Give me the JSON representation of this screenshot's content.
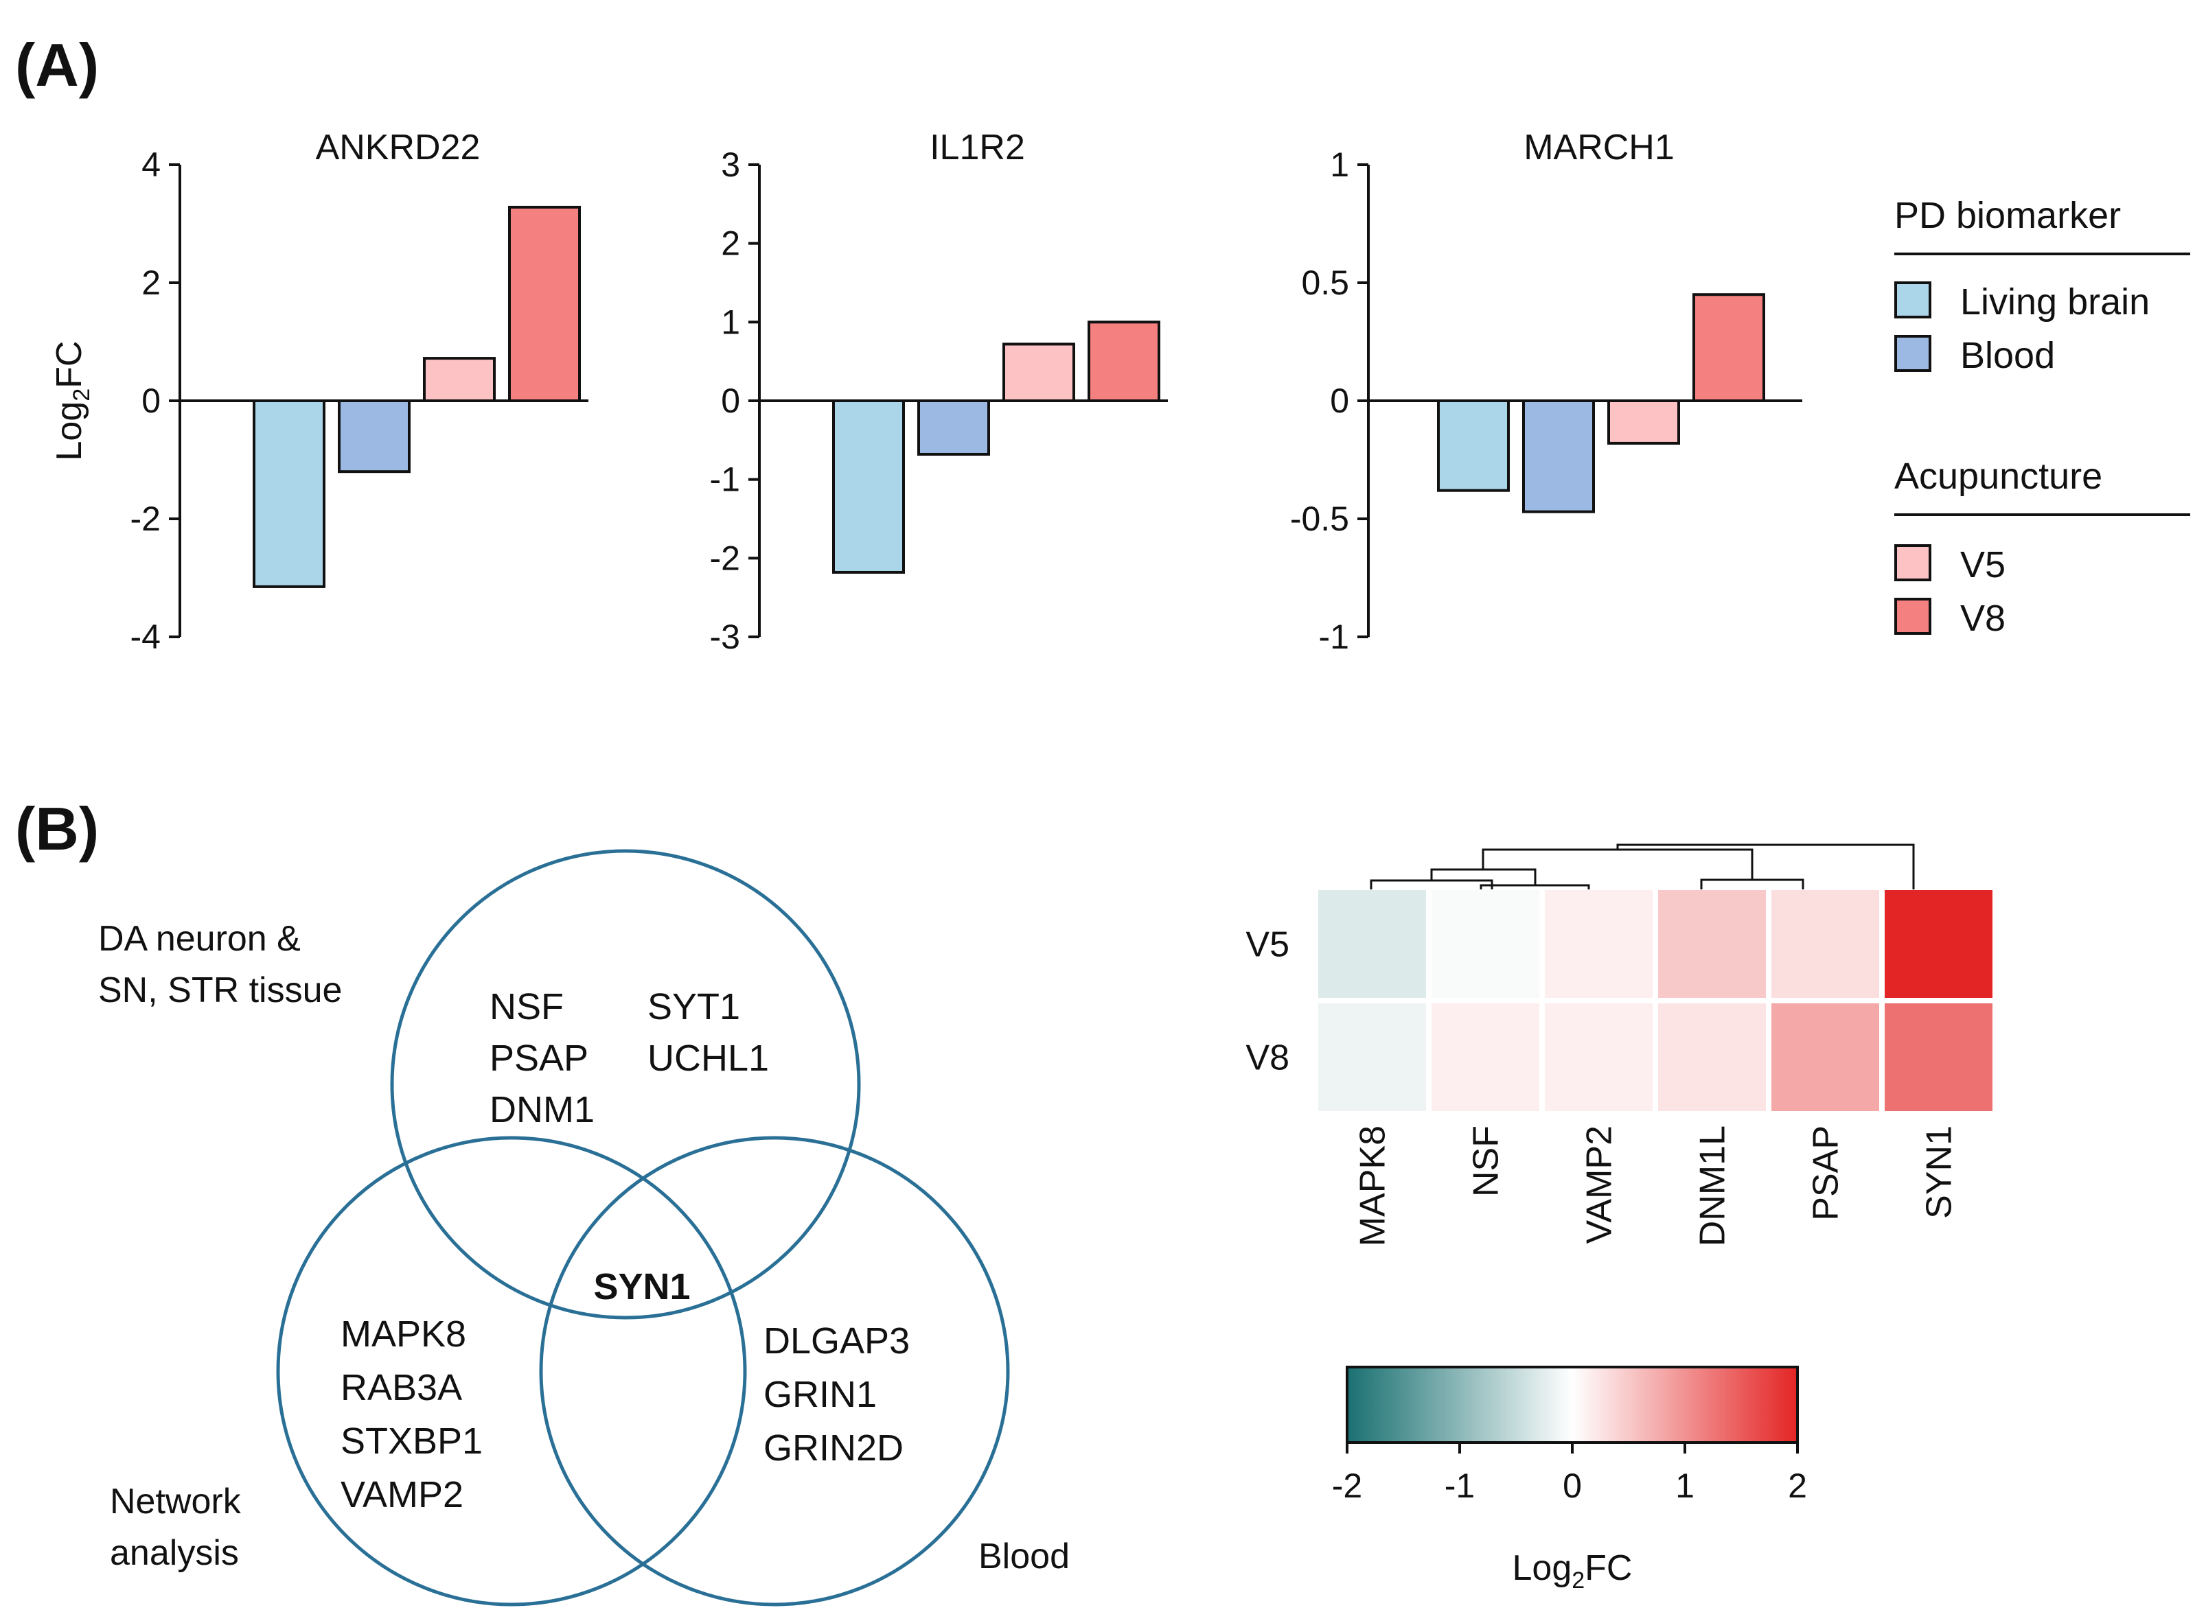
{
  "panel_labels": {
    "a": "(A)",
    "b": "(B)"
  },
  "colors": {
    "living_brain": "#abd6ea",
    "blood": "#9bb9e3",
    "v5": "#fcc2c4",
    "v8": "#f48080",
    "venn_stroke": "#2a7096",
    "heat_low": "#1a7071",
    "heat_mid": "#ffffff",
    "heat_high": "#e42525"
  },
  "legend": {
    "group1_title": "PD biomarker",
    "group1_items": [
      "Living brain",
      "Blood"
    ],
    "group2_title": "Acupuncture",
    "group2_items": [
      "V5",
      "V8"
    ]
  },
  "chart_data": [
    {
      "type": "bar",
      "title": "ANKRD22",
      "ylabel_main": "Log",
      "ylabel_sub": "2",
      "ylabel_tail": "FC",
      "ylim": [
        -4,
        4
      ],
      "yticks": [
        -4,
        -2,
        0,
        2,
        4
      ],
      "ytick_labels": [
        "-4",
        "-2",
        "0",
        "2",
        "4"
      ],
      "categories": [
        "Living brain",
        "Blood",
        "V5",
        "V8"
      ],
      "values": [
        -3.15,
        -1.2,
        0.72,
        3.28
      ]
    },
    {
      "type": "bar",
      "title": "IL1R2",
      "ylim": [
        -3,
        3
      ],
      "yticks": [
        -3,
        -2,
        -1,
        0,
        1,
        2,
        3
      ],
      "ytick_labels": [
        "-3",
        "-2",
        "-1",
        "0",
        "1",
        "2",
        "3"
      ],
      "categories": [
        "Living brain",
        "Blood",
        "V5",
        "V8"
      ],
      "values": [
        -2.18,
        -0.68,
        0.72,
        1.0
      ]
    },
    {
      "type": "bar",
      "title": "MARCH1",
      "ylim": [
        -1,
        1
      ],
      "yticks": [
        -1,
        -0.5,
        0,
        0.5,
        1
      ],
      "ytick_labels": [
        "-1",
        "-0.5",
        "0",
        "0.5",
        "1"
      ],
      "categories": [
        "Living brain",
        "Blood",
        "V5",
        "V8"
      ],
      "values": [
        -0.38,
        -0.47,
        -0.18,
        0.45
      ]
    },
    {
      "type": "heatmap",
      "rows": [
        "V5",
        "V8"
      ],
      "columns": [
        "MAPK8",
        "NSF",
        "VAMP2",
        "DNM1L",
        "PSAP",
        "SYN1"
      ],
      "values": [
        [
          -0.3,
          -0.05,
          0.15,
          0.5,
          0.3,
          2.0
        ],
        [
          -0.15,
          0.15,
          0.15,
          0.25,
          0.8,
          1.3
        ]
      ],
      "colorbar": {
        "range": [
          -2,
          2
        ],
        "ticks": [
          "-2",
          "-1",
          "0",
          "1",
          "2"
        ],
        "label_main": "Log",
        "label_sub": "2",
        "label_tail": "FC"
      }
    }
  ],
  "venn": {
    "labels": {
      "top_line1": "DA neuron &",
      "top_line2": "SN, STR tissue",
      "left_line1": "Network",
      "left_line2": "analysis",
      "right": "Blood"
    },
    "top_col1": [
      "NSF",
      "PSAP",
      "DNM1"
    ],
    "top_col2": [
      "SYT1",
      "UCHL1"
    ],
    "left_genes": [
      "MAPK8",
      "RAB3A",
      "STXBP1",
      "VAMP2"
    ],
    "right_genes": [
      "DLGAP3",
      "GRIN1",
      "GRIN2D"
    ],
    "center": "SYN1"
  }
}
